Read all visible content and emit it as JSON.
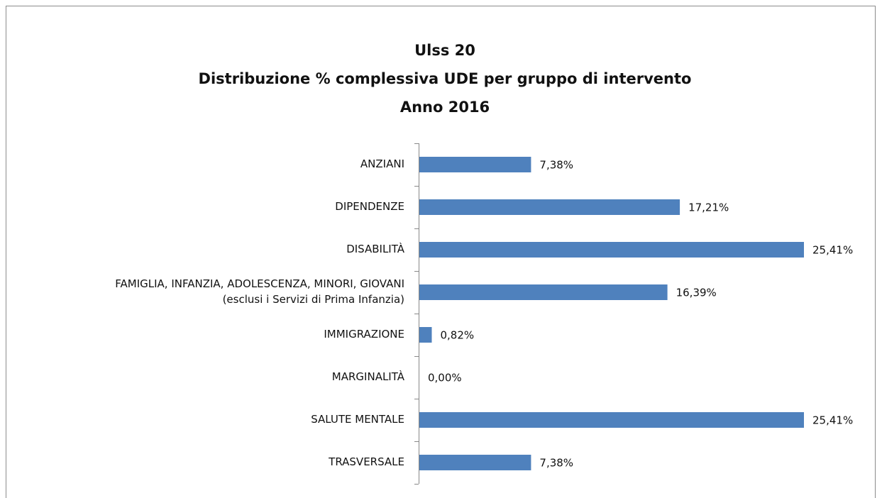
{
  "chart_data": {
    "type": "hbar",
    "title": [
      "Ulss 20",
      "Distribuzione % complessiva UDE per gruppo di intervento",
      "Anno 2016"
    ],
    "categories": [
      "ANZIANI",
      "DIPENDENZE",
      "DISABILITÀ",
      "FAMIGLIA, INFANZIA, ADOLESCENZA, MINORI, GIOVANI\n(esclusi i Servizi di Prima Infanzia)",
      "IMMIGRAZIONE",
      "MARGINALITÀ",
      "SALUTE MENTALE",
      "TRASVERSALE"
    ],
    "values": [
      7.38,
      17.21,
      25.41,
      16.39,
      0.82,
      0,
      25.41,
      7.38
    ],
    "value_labels": [
      "7,38%",
      "17,21%",
      "25,41%",
      "16,39%",
      "0,82%",
      "0,00%",
      "25,41%",
      "7,38%"
    ],
    "color": "#4f81bd"
  }
}
